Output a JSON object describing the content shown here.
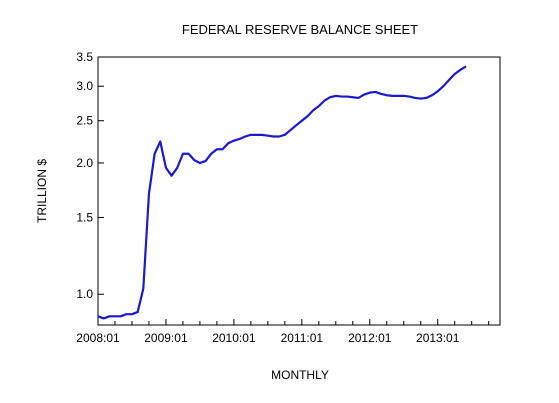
{
  "chart_data": {
    "type": "line",
    "title": "FEDERAL RESERVE BALANCE SHEET",
    "xlabel": "MONTHLY",
    "ylabel": "TRILLION $",
    "y_scale": "log",
    "ylim": [
      0.85,
      3.5
    ],
    "xlim": [
      "2008-01",
      "2013-12"
    ],
    "yticks": [
      {
        "value": 1.0,
        "label": "1.0"
      },
      {
        "value": 1.5,
        "label": "1.5"
      },
      {
        "value": 2.0,
        "label": "2.0"
      },
      {
        "value": 2.5,
        "label": "2.5"
      },
      {
        "value": 3.0,
        "label": "3.0"
      },
      {
        "value": 3.5,
        "label": "3.5"
      }
    ],
    "xticks": [
      {
        "value": "2008-01",
        "label": "2008:01"
      },
      {
        "value": "2009-01",
        "label": "2009:01"
      },
      {
        "value": "2010-01",
        "label": "2010:01"
      },
      {
        "value": "2011-01",
        "label": "2011:01"
      },
      {
        "value": "2012-01",
        "label": "2012:01"
      },
      {
        "value": "2013-01",
        "label": "2013:01"
      }
    ],
    "grid": false,
    "legend": "none",
    "series_color": "#1a1acc",
    "x": [
      "2008-01",
      "2008-02",
      "2008-03",
      "2008-04",
      "2008-05",
      "2008-06",
      "2008-07",
      "2008-08",
      "2008-09",
      "2008-10",
      "2008-11",
      "2008-12",
      "2009-01",
      "2009-02",
      "2009-03",
      "2009-04",
      "2009-05",
      "2009-06",
      "2009-07",
      "2009-08",
      "2009-09",
      "2009-10",
      "2009-11",
      "2009-12",
      "2010-01",
      "2010-02",
      "2010-03",
      "2010-04",
      "2010-05",
      "2010-06",
      "2010-07",
      "2010-08",
      "2010-09",
      "2010-10",
      "2010-11",
      "2010-12",
      "2011-01",
      "2011-02",
      "2011-03",
      "2011-04",
      "2011-05",
      "2011-06",
      "2011-07",
      "2011-08",
      "2011-09",
      "2011-10",
      "2011-11",
      "2011-12",
      "2012-01",
      "2012-02",
      "2012-03",
      "2012-04",
      "2012-05",
      "2012-06",
      "2012-07",
      "2012-08",
      "2012-09",
      "2012-10",
      "2012-11",
      "2012-12",
      "2013-01",
      "2013-02",
      "2013-03",
      "2013-04",
      "2013-05",
      "2013-06"
    ],
    "series": [
      {
        "values": [
          0.89,
          0.88,
          0.89,
          0.89,
          0.89,
          0.9,
          0.9,
          0.91,
          1.03,
          1.7,
          2.1,
          2.24,
          1.95,
          1.87,
          1.95,
          2.1,
          2.1,
          2.03,
          2.0,
          2.02,
          2.1,
          2.15,
          2.15,
          2.22,
          2.25,
          2.27,
          2.3,
          2.32,
          2.32,
          2.32,
          2.31,
          2.3,
          2.3,
          2.32,
          2.38,
          2.44,
          2.5,
          2.56,
          2.64,
          2.7,
          2.78,
          2.83,
          2.85,
          2.84,
          2.84,
          2.83,
          2.82,
          2.87,
          2.9,
          2.91,
          2.88,
          2.86,
          2.85,
          2.85,
          2.85,
          2.84,
          2.82,
          2.81,
          2.82,
          2.86,
          2.92,
          3.0,
          3.1,
          3.2,
          3.27,
          3.33
        ]
      }
    ]
  }
}
